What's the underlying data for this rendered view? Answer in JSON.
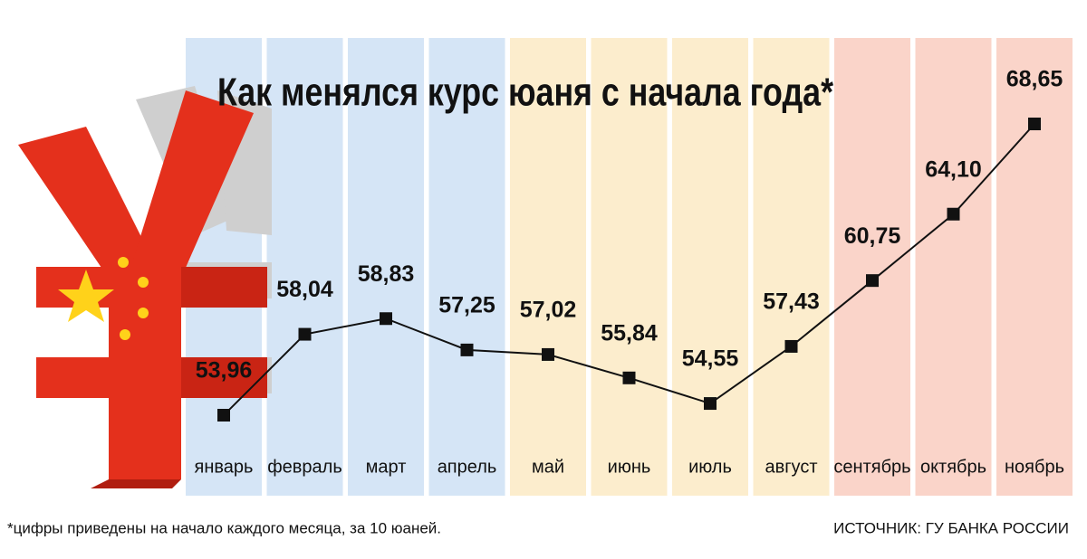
{
  "chart_data": {
    "type": "line",
    "title": "Как менялся курс юаня с начала года*",
    "categories": [
      "январь",
      "февраль",
      "март",
      "апрель",
      "май",
      "июнь",
      "июль",
      "август",
      "сентябрь",
      "октябрь",
      "ноябрь"
    ],
    "values": [
      53.96,
      58.04,
      58.83,
      57.25,
      57.02,
      55.84,
      54.55,
      57.43,
      60.75,
      64.1,
      68.65
    ],
    "value_labels": [
      "53,96",
      "58,04",
      "58,83",
      "57,25",
      "57,02",
      "55,84",
      "54,55",
      "57,43",
      "60,75",
      "64,10",
      "68,65"
    ],
    "column_colors": [
      "#d5e5f6",
      "#d5e5f6",
      "#d5e5f6",
      "#d5e5f6",
      "#fcedcd",
      "#fcedcd",
      "#fcedcd",
      "#fcedcd",
      "#fad4c9",
      "#fad4c9",
      "#fad4c9"
    ],
    "color": "#111111",
    "footnote": "*цифры приведены на начало каждого месяца, за 10 юаней.",
    "source": "ИСТОЧНИК: ГУ БАНКА РОССИИ"
  }
}
